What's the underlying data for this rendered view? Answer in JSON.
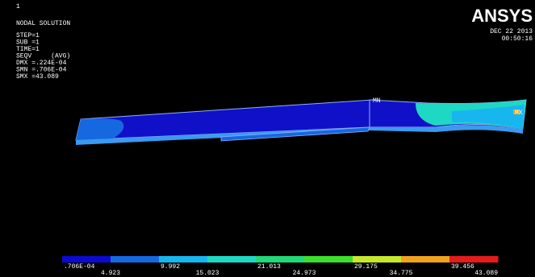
{
  "window_number": "1",
  "header": {
    "title": "NODAL SOLUTION",
    "info": [
      "STEP=1",
      "SUB =1",
      "TIME=1",
      "SEQV     (AVG)",
      "DMX =.224E-04",
      "SMN =.706E-04",
      "SMX =43.089"
    ]
  },
  "logo": "ANSYS",
  "date": "DEC 22 2013",
  "time": "00:50:16",
  "markers": {
    "min": "MN",
    "max": "MX"
  },
  "legend": {
    "colors": [
      "#0b0bd0",
      "#1668e0",
      "#18b6ee",
      "#1ed8c4",
      "#22d877",
      "#3be02c",
      "#c6e82a",
      "#f0a21e",
      "#e41c1c"
    ],
    "upper_labels": [
      ".706E-04",
      "9.992",
      "21.013",
      "29.175",
      "39.456"
    ],
    "lower_labels": [
      "4.923",
      "15.023",
      "24.973",
      "34.775",
      "43.089"
    ]
  }
}
